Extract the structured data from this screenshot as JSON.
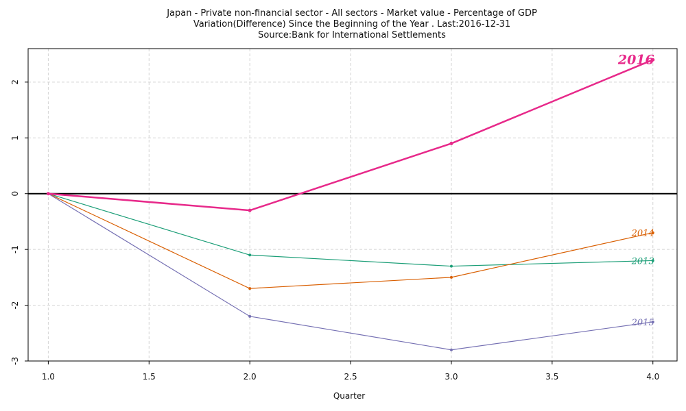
{
  "chart_data": {
    "type": "line",
    "title": "Japan - Private non-financial sector - All sectors - Market value - Percentage of GDP",
    "subtitle": "Variation(Difference) Since the Beginning of the Year . Last:2016-12-31",
    "source": "Source:Bank for International Settlements",
    "xlabel": "Quarter",
    "ylabel": "",
    "xlim": [
      0.9,
      4.12
    ],
    "ylim": [
      -3,
      2.6
    ],
    "xticks": [
      1.0,
      1.5,
      2.0,
      2.5,
      3.0,
      3.5,
      4.0
    ],
    "xtick_labels": [
      "1.0",
      "1.5",
      "2.0",
      "2.5",
      "3.0",
      "3.5",
      "4.0"
    ],
    "yticks": [
      -3,
      -2,
      -1,
      0,
      1,
      2
    ],
    "ytick_labels": [
      "-3",
      "-2",
      "-1",
      "0",
      "1",
      "2"
    ],
    "grid": true,
    "zero_line": true,
    "x": [
      1,
      2,
      3,
      4
    ],
    "series": [
      {
        "name": "2013",
        "values": [
          0,
          -1.1,
          -1.3,
          -1.2
        ],
        "color": "#1b9e77"
      },
      {
        "name": "2014",
        "values": [
          0,
          -1.7,
          -1.5,
          -0.7
        ],
        "color": "#d95f02"
      },
      {
        "name": "2015",
        "values": [
          0,
          -2.2,
          -2.8,
          -2.3
        ],
        "color": "#7570b3"
      },
      {
        "name": "2016",
        "values": [
          0,
          -0.3,
          0.9,
          2.4
        ],
        "color": "#e7298a"
      }
    ],
    "highlight_series": "2016"
  }
}
